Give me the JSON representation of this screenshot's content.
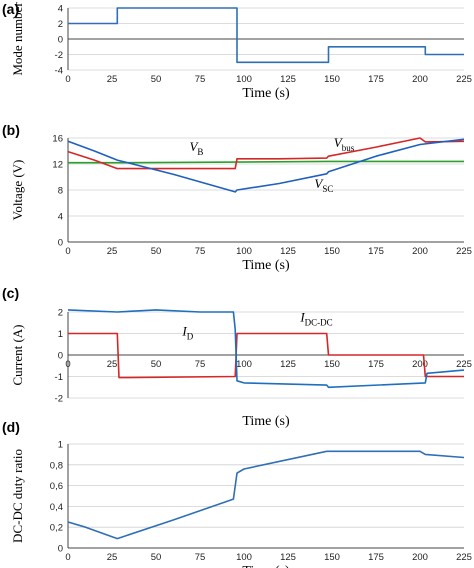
{
  "chart_data": [
    {
      "type": "line",
      "panel_label": "(a)",
      "xlabel": "Time (s)",
      "ylabel": "Mode number",
      "xlim": [
        0,
        225
      ],
      "ylim": [
        -4,
        4
      ],
      "xticks": [
        "0",
        "25",
        "50",
        "75",
        "100",
        "125",
        "150",
        "175",
        "200",
        "225"
      ],
      "yticks": [
        "4",
        "2",
        "0",
        "-2",
        "-4"
      ],
      "grid": true,
      "series": [
        {
          "color": "#2f6fb5",
          "x": [
            0,
            28,
            28,
            96,
            96,
            148,
            148,
            203,
            203,
            225
          ],
          "y": [
            2,
            2,
            4,
            4,
            -3,
            -3,
            -1,
            -1,
            -2,
            -2
          ]
        }
      ],
      "annotations": []
    },
    {
      "type": "line",
      "panel_label": "(b)",
      "xlabel": "Time (s)",
      "ylabel": "Voltage (V)",
      "xlim": [
        0,
        225
      ],
      "ylim": [
        0,
        16
      ],
      "xticks": [
        "0",
        "25",
        "50",
        "75",
        "100",
        "125",
        "150",
        "175",
        "200",
        "225"
      ],
      "yticks": [
        "16",
        "12",
        "8",
        "4",
        "0"
      ],
      "grid": true,
      "series": [
        {
          "color": "#2ca02c",
          "x": [
            0,
            28,
            96,
            148,
            203,
            225
          ],
          "y": [
            12.2,
            12.2,
            12.3,
            12.4,
            12.4,
            12.4
          ]
        },
        {
          "color": "#d62728",
          "x": [
            0,
            15,
            28,
            60,
            95,
            96,
            120,
            147,
            148,
            175,
            200,
            203,
            225
          ],
          "y": [
            13.9,
            12.6,
            11.3,
            11.3,
            11.3,
            12.8,
            12.8,
            12.9,
            13.2,
            14.6,
            16.0,
            15.4,
            15.5
          ]
        },
        {
          "color": "#1f5fbf",
          "x": [
            0,
            15,
            28,
            60,
            95,
            96,
            120,
            147,
            148,
            175,
            200,
            225
          ],
          "y": [
            15.5,
            14.0,
            12.6,
            10.4,
            7.7,
            8.0,
            9.0,
            10.5,
            10.8,
            13.2,
            15.0,
            15.8
          ]
        }
      ],
      "annotations": [
        {
          "base": "V",
          "sub": "B",
          "x": 69,
          "y": 14.0
        },
        {
          "base": "V",
          "sub": "bus",
          "x": 151,
          "y": 14.6
        },
        {
          "base": "V",
          "sub": "SC",
          "x": 140,
          "y": 8.3
        }
      ]
    },
    {
      "type": "line",
      "panel_label": "(c)",
      "xlabel": "Time (s)",
      "ylabel": "Current (A)",
      "xlim": [
        0,
        225
      ],
      "ylim": [
        -2,
        2
      ],
      "xticks": [
        "0",
        "25",
        "50",
        "75",
        "100",
        "125",
        "150",
        "175",
        "200",
        "225"
      ],
      "yticks": [
        "2",
        "1",
        "0",
        "-1",
        "-2"
      ],
      "grid": true,
      "series": [
        {
          "color": "#d62728",
          "x": [
            0,
            28,
            29,
            95,
            96,
            147,
            148,
            202,
            203,
            225
          ],
          "y": [
            1.0,
            1.0,
            -1.05,
            -1.0,
            1.0,
            1.0,
            0.0,
            0.0,
            -1.0,
            -1.0
          ]
        },
        {
          "color": "#1f6fbf",
          "x": [
            0,
            28,
            50,
            75,
            94,
            95,
            96,
            100,
            147,
            148,
            203,
            204,
            225
          ],
          "y": [
            2.1,
            2.0,
            2.1,
            2.0,
            2.0,
            1.2,
            -1.2,
            -1.3,
            -1.4,
            -1.5,
            -1.3,
            -0.85,
            -0.7
          ]
        }
      ],
      "annotations": [
        {
          "base": "I",
          "sub": "D",
          "x": 65,
          "y": 0.9
        },
        {
          "base": "I",
          "sub": "DC-DC",
          "x": 132,
          "y": 1.55
        }
      ]
    },
    {
      "type": "line",
      "panel_label": "(d)",
      "xlabel": "Time (s)",
      "ylabel": "DC-DC duty ratio",
      "xlim": [
        0,
        225
      ],
      "ylim": [
        0,
        1
      ],
      "xticks": [
        "0",
        "25",
        "50",
        "75",
        "100",
        "125",
        "150",
        "175",
        "200",
        "225"
      ],
      "yticks": [
        "1",
        "0,8",
        "0,6",
        "0,4",
        "0,2",
        "0"
      ],
      "grid": true,
      "series": [
        {
          "color": "#2f6fb5",
          "x": [
            0,
            10,
            28,
            60,
            94,
            96,
            100,
            147,
            150,
            200,
            203,
            225
          ],
          "y": [
            0.25,
            0.2,
            0.09,
            0.27,
            0.47,
            0.72,
            0.76,
            0.93,
            0.93,
            0.93,
            0.9,
            0.87
          ]
        }
      ],
      "annotations": []
    }
  ]
}
